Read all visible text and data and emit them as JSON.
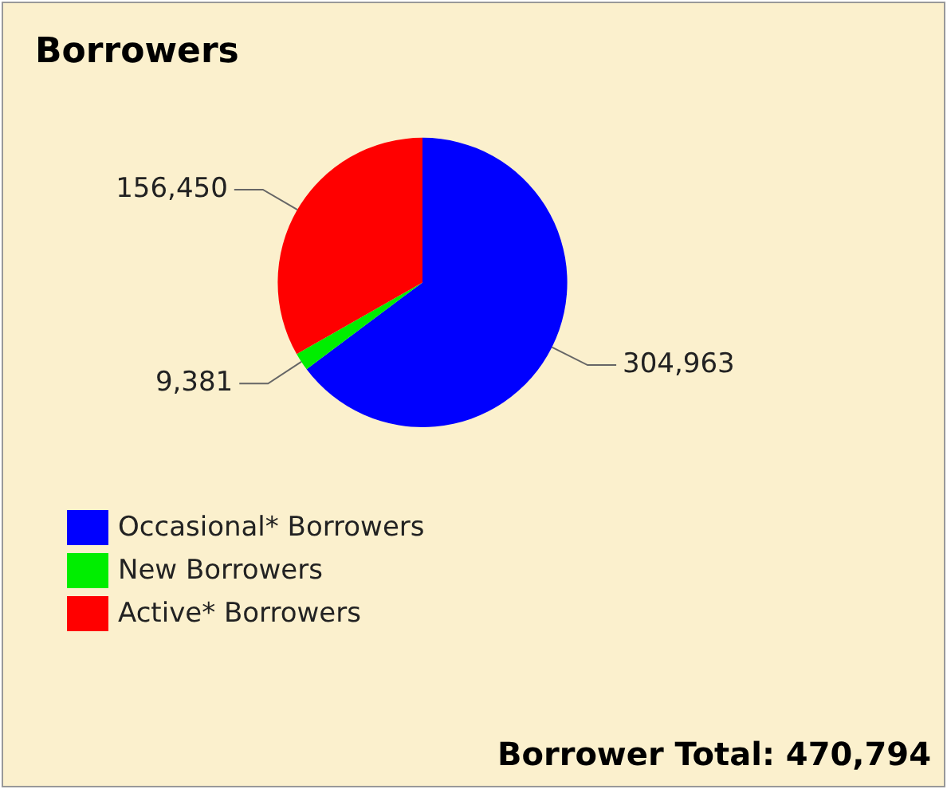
{
  "chart_data": {
    "type": "pie",
    "title": "Borrowers",
    "categories": [
      "Occasional* Borrowers",
      "New Borrowers",
      "Active* Borrowers"
    ],
    "values": [
      304963,
      9381,
      156450
    ],
    "colors": [
      "#0000ff",
      "#00ee00",
      "#ff0000"
    ],
    "value_labels": [
      "304,963",
      "9,381",
      "156,450"
    ],
    "legend": "bottom left",
    "annotations": [
      "Borrower Total: 470,794"
    ]
  }
}
